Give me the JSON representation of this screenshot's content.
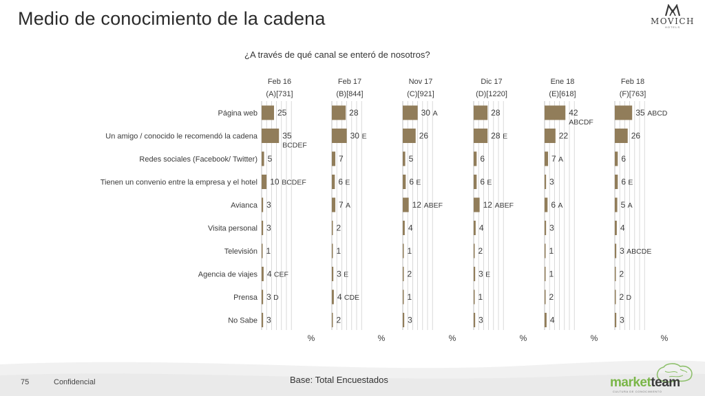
{
  "page": {
    "title": "Medio de conocimiento de la cadena",
    "question": "¿A través de qué canal se enteró de nosotros?",
    "base_note": "Base: Total Encuestados",
    "page_number": "75",
    "confidential": "Confidencial"
  },
  "logos": {
    "movich_brand": "MOVICH",
    "movich_sub": "HOTELS",
    "marketteam_a": "market",
    "marketteam_b": "team",
    "marketteam_tag": "CULTURA DE CONOCIMIENTO"
  },
  "colors": {
    "bar": "#917d5a",
    "grid": "#cfcfcf",
    "title": "#2b2b2b"
  },
  "chart_data": {
    "type": "bar",
    "orientation": "horizontal",
    "unit_symbol": "%",
    "categories": [
      "Página web",
      "Un amigo / conocido le recomendó la cadena",
      "Redes sociales (Facebook/ Twitter)",
      "Tienen un convenio entre la empresa y el hotel",
      "Avianca",
      "Visita personal",
      "Televisión",
      "Agencia de viajes",
      "Prensa",
      "No Sabe"
    ],
    "series": [
      {
        "name": "Feb 16",
        "base": "(A)[731]",
        "values": [
          25,
          35,
          5,
          10,
          3,
          3,
          1,
          4,
          3,
          3
        ],
        "flags": [
          "",
          "BCDEF",
          "",
          "BCDEF",
          "",
          "",
          "",
          "CEF",
          "D",
          ""
        ]
      },
      {
        "name": "Feb 17",
        "base": "(B)[844]",
        "values": [
          28,
          30,
          7,
          6,
          7,
          2,
          1,
          3,
          4,
          2
        ],
        "flags": [
          "",
          "E",
          "",
          "E",
          "A",
          "",
          "",
          "E",
          "CDE",
          ""
        ]
      },
      {
        "name": "Nov 17",
        "base": "(C)[921]",
        "values": [
          30,
          26,
          5,
          6,
          12,
          4,
          1,
          2,
          1,
          3
        ],
        "flags": [
          "A",
          "",
          "",
          "E",
          "ABEF",
          "",
          "",
          "",
          "",
          ""
        ]
      },
      {
        "name": "Dic 17",
        "base": "(D)[1220]",
        "values": [
          28,
          28,
          6,
          6,
          12,
          4,
          2,
          3,
          1,
          3
        ],
        "flags": [
          "",
          "E",
          "",
          "E",
          "ABEF",
          "",
          "",
          "E",
          "",
          ""
        ]
      },
      {
        "name": "Ene 18",
        "base": "(E)[618]",
        "values": [
          42,
          22,
          7,
          3,
          6,
          3,
          1,
          1,
          2,
          4
        ],
        "flags": [
          "ABCDF",
          "",
          "A",
          "",
          "A",
          "",
          "",
          "",
          "",
          ""
        ]
      },
      {
        "name": "Feb 18",
        "base": "(F)[763]",
        "values": [
          35,
          26,
          6,
          6,
          5,
          4,
          3,
          2,
          2,
          3
        ],
        "flags": [
          "ABCD",
          "",
          "",
          "E",
          "A",
          "",
          "ABCDE",
          "",
          "D",
          ""
        ]
      }
    ],
    "xlim": [
      0,
      100
    ],
    "grid": true,
    "legend": "none"
  }
}
